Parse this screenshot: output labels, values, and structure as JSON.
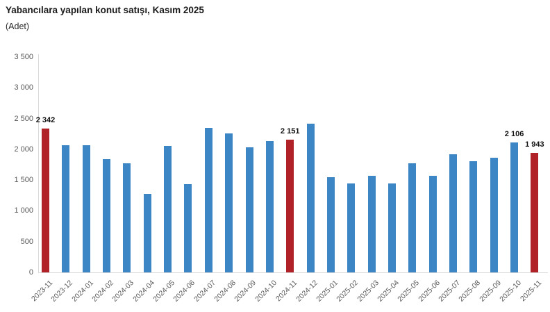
{
  "header": {
    "title": "Yabancılara yapılan konut satışı, Kasım 2025",
    "subtitle": "(Adet)"
  },
  "chart_data": {
    "type": "bar",
    "title": "Yabancılara yapılan konut satışı, Kasım 2025",
    "subtitle_unit": "(Adet)",
    "categories": [
      "2023-11",
      "2023-12",
      "2024-01",
      "2024-02",
      "2024-03",
      "2024-04",
      "2024-05",
      "2024-06",
      "2024-07",
      "2024-08",
      "2024-09",
      "2024-10",
      "2024-11",
      "2024-12",
      "2025-01",
      "2025-02",
      "2025-03",
      "2025-04",
      "2025-05",
      "2025-06",
      "2025-07",
      "2025-08",
      "2025-09",
      "2025-10",
      "2025-11"
    ],
    "values": [
      2342,
      2065,
      2065,
      1845,
      1775,
      1275,
      2060,
      1435,
      2350,
      2260,
      2030,
      2135,
      2151,
      2420,
      1545,
      1450,
      1570,
      1440,
      1775,
      1565,
      1915,
      1805,
      1860,
      2106,
      1943
    ],
    "highlight_indices": [
      0,
      12,
      24
    ],
    "point_labels": [
      {
        "index": 0,
        "text": "2 342"
      },
      {
        "index": 12,
        "text": "2 151"
      },
      {
        "index": 23,
        "text": "2 106"
      },
      {
        "index": 24,
        "text": "1 943"
      }
    ],
    "ylim": [
      0,
      3500
    ],
    "ytick_values": [
      0,
      500,
      1000,
      1500,
      2000,
      2500,
      3000,
      3500
    ],
    "ytick_labels": [
      "0",
      "500",
      "1 000",
      "1 500",
      "2 000",
      "2 500",
      "3 000",
      "3 500"
    ],
    "xlabel": "",
    "ylabel": "",
    "grid": false,
    "legend": false,
    "colors": {
      "bar": "#3c86c5",
      "highlight": "#b02128",
      "axis": "#d9d9d9",
      "tick_text": "#595959"
    }
  }
}
